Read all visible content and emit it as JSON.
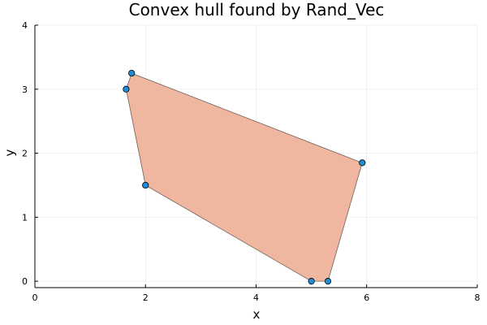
{
  "chart_data": {
    "type": "scatter",
    "title": "Convex hull found by Rand_Vec",
    "xlabel": "x",
    "ylabel": "y",
    "xlim": [
      0,
      8
    ],
    "ylim": [
      -0.1,
      4
    ],
    "xticks": [
      0,
      2,
      4,
      6,
      8
    ],
    "yticks": [
      0,
      1,
      2,
      3,
      4
    ],
    "grid": true,
    "legend": "none",
    "points": [
      {
        "x": 1.75,
        "y": 3.25
      },
      {
        "x": 1.65,
        "y": 3.0
      },
      {
        "x": 2.0,
        "y": 1.5
      },
      {
        "x": 5.0,
        "y": 0.0
      },
      {
        "x": 5.3,
        "y": 0.0
      },
      {
        "x": 5.92,
        "y": 1.85
      }
    ],
    "hull": [
      {
        "x": 1.75,
        "y": 3.25
      },
      {
        "x": 5.92,
        "y": 1.85
      },
      {
        "x": 5.3,
        "y": 0.0
      },
      {
        "x": 5.0,
        "y": 0.0
      },
      {
        "x": 2.0,
        "y": 1.5
      },
      {
        "x": 1.65,
        "y": 3.0
      }
    ],
    "colors": {
      "hull_fill": "#efb6a0",
      "point_fill": "#1f8dd6"
    }
  }
}
